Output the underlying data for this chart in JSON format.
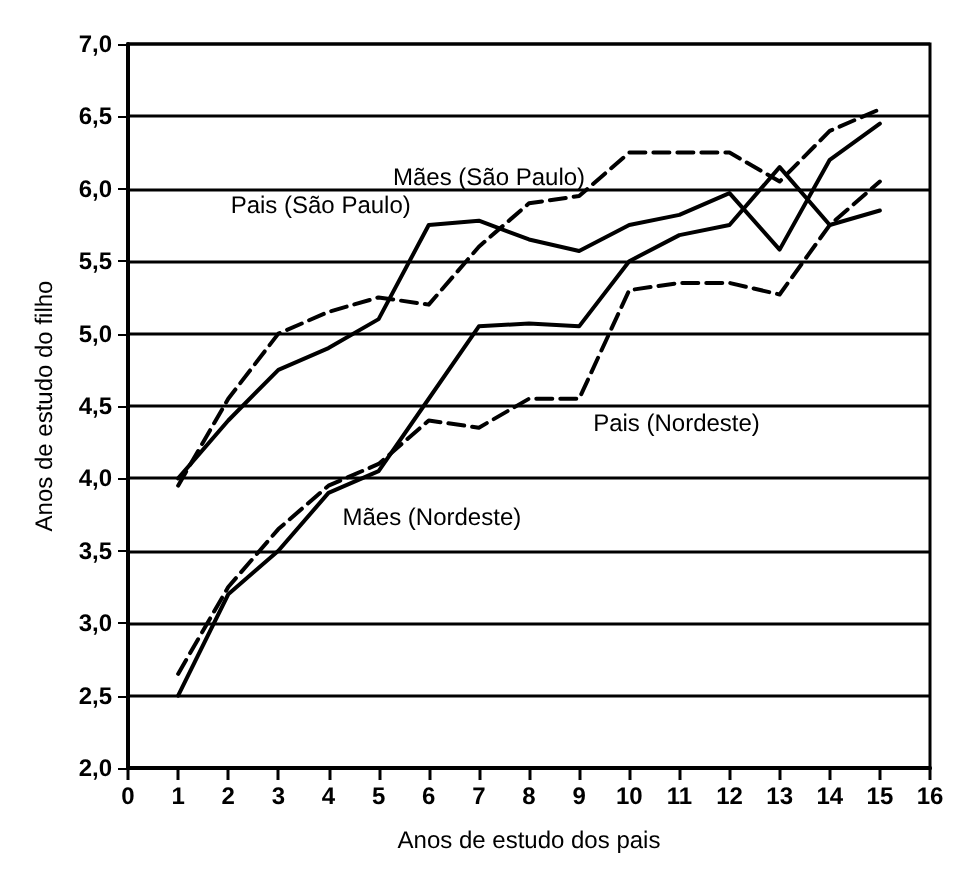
{
  "chart_data": {
    "type": "line",
    "xlabel": "Anos de estudo dos pais",
    "ylabel": "Anos de estudo do filho",
    "x": [
      1,
      2,
      3,
      4,
      5,
      6,
      7,
      8,
      9,
      10,
      11,
      12,
      13,
      14,
      15
    ],
    "xlim": [
      0,
      16
    ],
    "xticks": [
      0,
      1,
      2,
      3,
      4,
      5,
      6,
      7,
      8,
      9,
      10,
      11,
      12,
      13,
      14,
      15,
      16
    ],
    "ylim": [
      2,
      7
    ],
    "yticks": [
      {
        "value": 2,
        "label": "2,0"
      },
      {
        "value": 2.5,
        "label": "2,5"
      },
      {
        "value": 3,
        "label": "3,0"
      },
      {
        "value": 3.5,
        "label": "3,5"
      },
      {
        "value": 4,
        "label": "4,0"
      },
      {
        "value": 4.5,
        "label": "4,5"
      },
      {
        "value": 5,
        "label": "5,0"
      },
      {
        "value": 5.5,
        "label": "5,5"
      },
      {
        "value": 6,
        "label": "6,0"
      },
      {
        "value": 6.5,
        "label": "6,5"
      },
      {
        "value": 7,
        "label": "7,0"
      }
    ],
    "grid": "y",
    "legend": false,
    "marker": "none",
    "series": [
      {
        "name": "Pais (São Paulo)",
        "color": "#000000",
        "line_style": "solid",
        "values": [
          4.0,
          4.4,
          4.75,
          4.9,
          5.1,
          5.75,
          5.78,
          5.65,
          5.57,
          5.75,
          5.82,
          5.97,
          5.58,
          6.2,
          6.45
        ]
      },
      {
        "name": "Mães (São Paulo)",
        "color": "#000000",
        "line_style": "dashed",
        "values": [
          3.95,
          4.55,
          5.0,
          5.15,
          5.25,
          5.2,
          5.6,
          5.9,
          5.95,
          6.25,
          6.25,
          6.25,
          6.05,
          6.4,
          6.55
        ]
      },
      {
        "name": "Pais (Nordeste)",
        "color": "#000000",
        "line_style": "dashed",
        "values": [
          2.65,
          3.25,
          3.65,
          3.95,
          4.1,
          4.4,
          4.35,
          4.55,
          4.55,
          5.3,
          5.35,
          5.35,
          5.27,
          5.75,
          6.05
        ]
      },
      {
        "name": "Mães (Nordeste)",
        "color": "#000000",
        "line_style": "solid",
        "values": [
          2.5,
          3.2,
          3.5,
          3.9,
          4.05,
          4.55,
          5.05,
          5.07,
          5.05,
          5.5,
          5.68,
          5.75,
          6.15,
          5.75,
          5.85
        ]
      }
    ]
  }
}
